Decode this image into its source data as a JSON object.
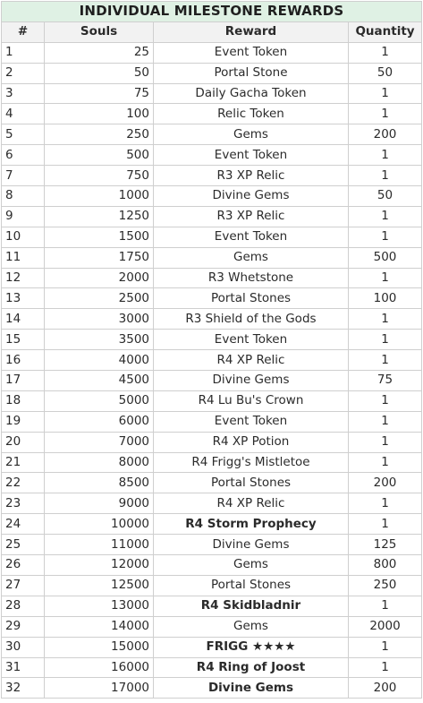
{
  "title": "INDIVIDUAL MILESTONE REWARDS",
  "columns": [
    "#",
    "Souls",
    "Reward",
    "Quantity"
  ],
  "rows": [
    {
      "n": "1",
      "souls": "25",
      "reward": "Event Token",
      "qty": "1",
      "bold": false
    },
    {
      "n": "2",
      "souls": "50",
      "reward": "Portal Stone",
      "qty": "50",
      "bold": false
    },
    {
      "n": "3",
      "souls": "75",
      "reward": "Daily Gacha Token",
      "qty": "1",
      "bold": false
    },
    {
      "n": "4",
      "souls": "100",
      "reward": "Relic Token",
      "qty": "1",
      "bold": false
    },
    {
      "n": "5",
      "souls": "250",
      "reward": "Gems",
      "qty": "200",
      "bold": false
    },
    {
      "n": "6",
      "souls": "500",
      "reward": "Event Token",
      "qty": "1",
      "bold": false
    },
    {
      "n": "7",
      "souls": "750",
      "reward": "R3 XP Relic",
      "qty": "1",
      "bold": false
    },
    {
      "n": "8",
      "souls": "1000",
      "reward": "Divine Gems",
      "qty": "50",
      "bold": false
    },
    {
      "n": "9",
      "souls": "1250",
      "reward": "R3 XP Relic",
      "qty": "1",
      "bold": false
    },
    {
      "n": "10",
      "souls": "1500",
      "reward": "Event Token",
      "qty": "1",
      "bold": false
    },
    {
      "n": "11",
      "souls": "1750",
      "reward": "Gems",
      "qty": "500",
      "bold": false
    },
    {
      "n": "12",
      "souls": "2000",
      "reward": "R3 Whetstone",
      "qty": "1",
      "bold": false
    },
    {
      "n": "13",
      "souls": "2500",
      "reward": "Portal Stones",
      "qty": "100",
      "bold": false
    },
    {
      "n": "14",
      "souls": "3000",
      "reward": "R3 Shield of the Gods",
      "qty": "1",
      "bold": false
    },
    {
      "n": "15",
      "souls": "3500",
      "reward": "Event Token",
      "qty": "1",
      "bold": false
    },
    {
      "n": "16",
      "souls": "4000",
      "reward": "R4 XP Relic",
      "qty": "1",
      "bold": false
    },
    {
      "n": "17",
      "souls": "4500",
      "reward": "Divine Gems",
      "qty": "75",
      "bold": false
    },
    {
      "n": "18",
      "souls": "5000",
      "reward": "R4 Lu Bu's Crown",
      "qty": "1",
      "bold": false
    },
    {
      "n": "19",
      "souls": "6000",
      "reward": "Event Token",
      "qty": "1",
      "bold": false
    },
    {
      "n": "20",
      "souls": "7000",
      "reward": "R4 XP Potion",
      "qty": "1",
      "bold": false
    },
    {
      "n": "21",
      "souls": "8000",
      "reward": "R4 Frigg's Mistletoe",
      "qty": "1",
      "bold": false
    },
    {
      "n": "22",
      "souls": "8500",
      "reward": "Portal Stones",
      "qty": "200",
      "bold": false
    },
    {
      "n": "23",
      "souls": "9000",
      "reward": "R4 XP Relic",
      "qty": "1",
      "bold": false
    },
    {
      "n": "24",
      "souls": "10000",
      "reward": "R4 Storm Prophecy",
      "qty": "1",
      "bold": true
    },
    {
      "n": "25",
      "souls": "11000",
      "reward": "Divine Gems",
      "qty": "125",
      "bold": false
    },
    {
      "n": "26",
      "souls": "12000",
      "reward": "Gems",
      "qty": "800",
      "bold": false
    },
    {
      "n": "27",
      "souls": "12500",
      "reward": "Portal Stones",
      "qty": "250",
      "bold": false
    },
    {
      "n": "28",
      "souls": "13000",
      "reward": "R4 Skidbladnir",
      "qty": "1",
      "bold": true
    },
    {
      "n": "29",
      "souls": "14000",
      "reward": "Gems",
      "qty": "2000",
      "bold": false
    },
    {
      "n": "30",
      "souls": "15000",
      "reward": "FRIGG ★★★★",
      "qty": "1",
      "bold": true
    },
    {
      "n": "31",
      "souls": "16000",
      "reward": "R4 Ring of Joost",
      "qty": "1",
      "bold": true
    },
    {
      "n": "32",
      "souls": "17000",
      "reward": "Divine Gems",
      "qty": "200",
      "bold": true
    }
  ],
  "colors": {
    "title_bg": "#dff1e4",
    "header_bg": "#f2f2f2",
    "grid": "#cfcfcf",
    "text": "#2b2b2b"
  }
}
